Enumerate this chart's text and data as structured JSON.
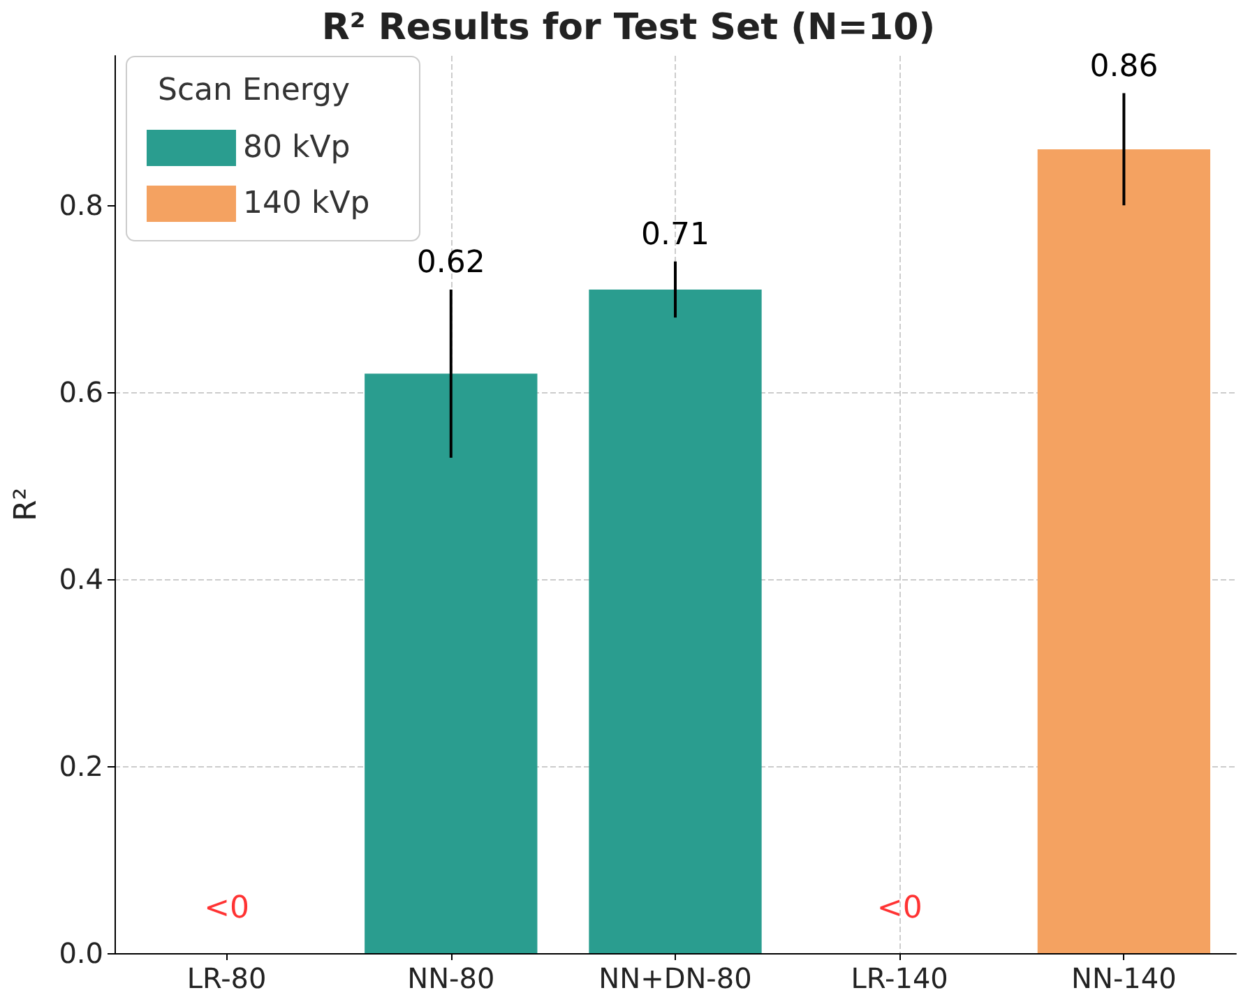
{
  "chart_data": {
    "type": "bar",
    "title": "R² Results for Test Set (N=10)",
    "ylabel": "R²",
    "legend_title": "Scan Energy",
    "categories": [
      "LR-80",
      "NN-80",
      "NN+DN-80",
      "LR-140",
      "NN-140"
    ],
    "series": [
      {
        "name": "80 kVp",
        "color": "#2a9d8f",
        "values": [
          null,
          0.62,
          0.71,
          null,
          null
        ],
        "errors": [
          null,
          [
            0.53,
            0.71
          ],
          [
            0.68,
            0.74
          ],
          null,
          null
        ]
      },
      {
        "name": "140 kVp",
        "color": "#f4a261",
        "values": [
          null,
          null,
          null,
          null,
          0.86
        ],
        "errors": [
          null,
          null,
          null,
          null,
          [
            0.8,
            0.92
          ]
        ]
      }
    ],
    "stacked": true,
    "data_labels": true,
    "annotations": [
      "<0",
      "<0"
    ],
    "ylim": [
      0,
      0.96
    ],
    "yticks": [
      {
        "value": 0,
        "label": "0.0"
      },
      0.2,
      0.4,
      0.6,
      0.8
    ],
    "grid": true,
    "legend": "top left"
  }
}
